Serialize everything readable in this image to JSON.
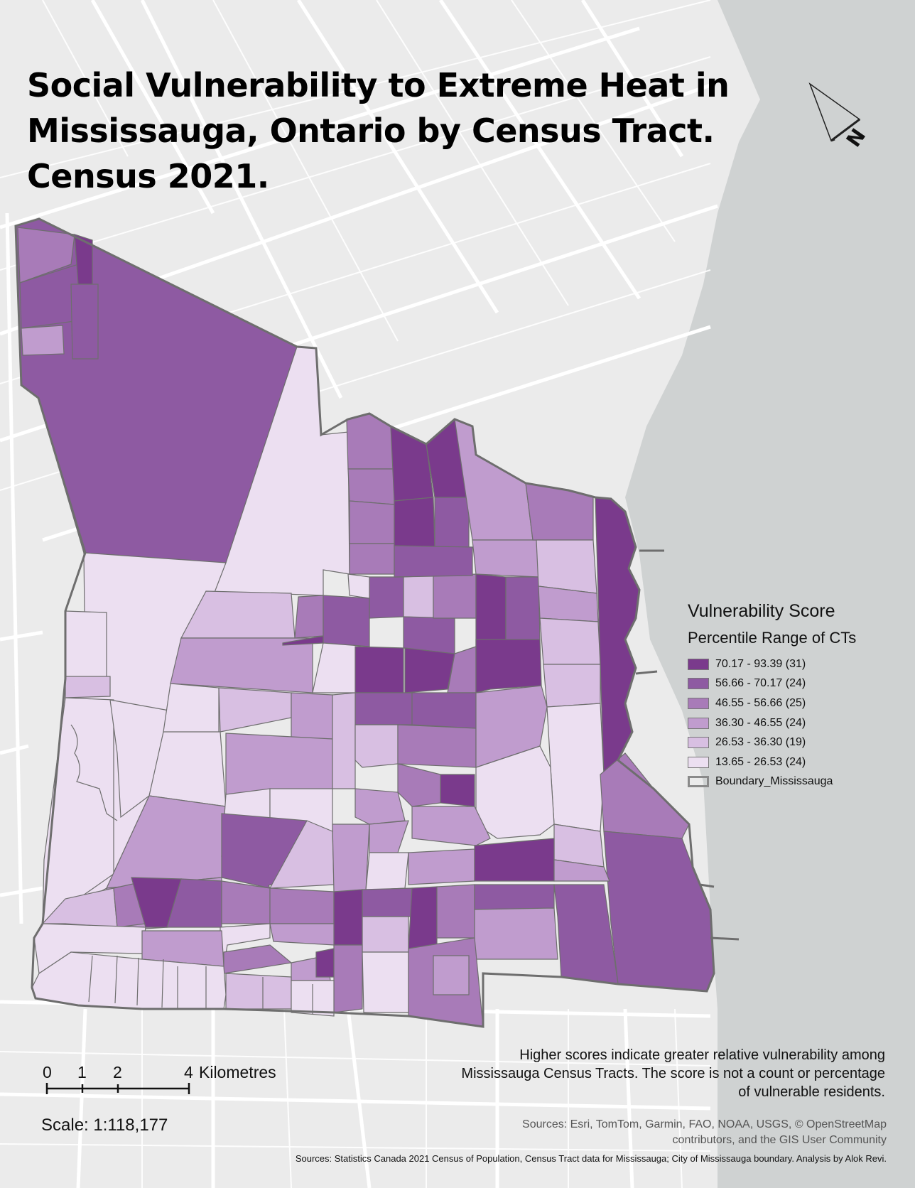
{
  "title_lines": [
    "Social Vulnerability to Extreme Heat in",
    "Mississauga, Ontario by Census Tract.",
    "Census 2021."
  ],
  "north_arrow": {
    "label": "N",
    "icon": "north-arrow-icon"
  },
  "legend": {
    "title": "Vulnerability Score",
    "subtitle": "Percentile Range of CTs",
    "classes": [
      {
        "label": "70.17 - 93.39 (31)",
        "color": "#7a3a8c"
      },
      {
        "label": "56.66 - 70.17 (24)",
        "color": "#8e5aa2"
      },
      {
        "label": "46.55 - 56.66 (25)",
        "color": "#a87bb8"
      },
      {
        "label": "36.30 - 46.55 (24)",
        "color": "#c09cce"
      },
      {
        "label": "26.53 - 36.30 (19)",
        "color": "#d8bfe2"
      },
      {
        "label": "13.65 - 26.53 (24)",
        "color": "#ecdff1"
      }
    ],
    "boundary_label": "Boundary_Mississauga"
  },
  "note_lines": [
    "Higher scores indicate greater relative vulnerability among",
    "Mississauga Census Tracts. The score is not a count or percentage",
    "of vulnerable residents."
  ],
  "scale_bar": {
    "ticks": [
      "0",
      "1",
      "2",
      "4"
    ],
    "unit": "Kilometres",
    "scale_text": "Scale: 1:118,177"
  },
  "sources_basemap_lines": [
    "Sources: Esri, TomTom, Garmin, FAO, NOAA, USGS, © OpenStreetMap",
    "contributors, and the GIS User Community"
  ],
  "sources_data": "Sources: Statistics Canada 2021 Census of Population, Census Tract data for Mississauga; City of Mississauga boundary. Analysis by Alok Revi.",
  "colors": {
    "land": "#ebebeb",
    "water": "#cfd2d2",
    "roads": "#ffffff",
    "boundary": "#6e6e6e"
  }
}
